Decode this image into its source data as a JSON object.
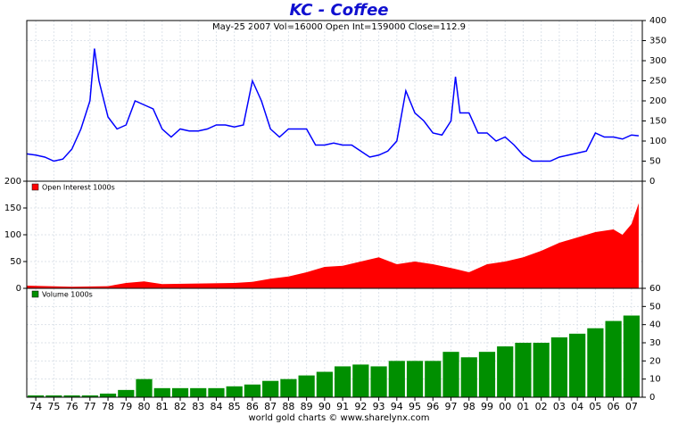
{
  "chart_data": [
    {
      "type": "line",
      "title": "KC  -  Coffee",
      "subtitle": "May-25 2007   Vol=16000   Open Int=159000   Close=112.9",
      "color": "#0000ff",
      "x": [
        1973.5,
        1974,
        1974.5,
        1975,
        1975.5,
        1976,
        1976.5,
        1977,
        1977.25,
        1977.5,
        1978,
        1978.5,
        1979,
        1979.5,
        1980,
        1980.5,
        1981,
        1981.5,
        1982,
        1982.5,
        1983,
        1983.5,
        1984,
        1984.5,
        1985,
        1985.5,
        1986,
        1986.5,
        1987,
        1987.5,
        1988,
        1988.5,
        1989,
        1989.5,
        1990,
        1990.5,
        1991,
        1991.5,
        1992,
        1992.5,
        1993,
        1993.5,
        1994,
        1994.5,
        1995,
        1995.5,
        1996,
        1996.5,
        1997,
        1997.25,
        1997.5,
        1998,
        1998.5,
        1999,
        1999.5,
        2000,
        2000.5,
        2001,
        2001.5,
        2002,
        2002.5,
        2003,
        2003.5,
        2004,
        2004.5,
        2005,
        2005.5,
        2006,
        2006.5,
        2007,
        2007.4
      ],
      "values": [
        68,
        65,
        60,
        50,
        55,
        80,
        130,
        200,
        330,
        250,
        160,
        130,
        140,
        200,
        190,
        180,
        130,
        110,
        130,
        125,
        125,
        130,
        140,
        140,
        135,
        140,
        250,
        200,
        130,
        110,
        130,
        130,
        130,
        90,
        90,
        95,
        90,
        90,
        75,
        60,
        65,
        75,
        100,
        225,
        170,
        150,
        120,
        115,
        150,
        260,
        170,
        170,
        120,
        120,
        100,
        110,
        90,
        65,
        50,
        50,
        50,
        60,
        65,
        70,
        75,
        120,
        110,
        110,
        105,
        115,
        113
      ],
      "ylim": [
        0,
        400
      ],
      "yticks": [
        0,
        50,
        100,
        150,
        200,
        250,
        300,
        350,
        400
      ]
    },
    {
      "type": "area",
      "x": [
        1973.5,
        1976,
        1978,
        1979,
        1980,
        1981,
        1983,
        1985,
        1986,
        1987,
        1988,
        1989,
        1990,
        1991,
        1992,
        1993,
        1994,
        1995,
        1996,
        1997,
        1998,
        1999,
        2000,
        2001,
        2002,
        2003,
        2004,
        2005,
        2006,
        2006.5,
        2007,
        2007.4
      ],
      "series": [
        {
          "name": "Open Interest 1000s",
          "color": "#ff0000",
          "values": [
            5,
            3,
            4,
            10,
            13,
            8,
            9,
            10,
            12,
            18,
            22,
            30,
            40,
            42,
            50,
            58,
            45,
            50,
            45,
            38,
            30,
            45,
            50,
            58,
            70,
            85,
            95,
            105,
            110,
            100,
            120,
            159
          ]
        }
      ],
      "ylim": [
        0,
        200
      ],
      "yticks": [
        0,
        50,
        100,
        150,
        200
      ]
    },
    {
      "type": "bar",
      "x": [
        1974,
        1975,
        1976,
        1977,
        1978,
        1979,
        1980,
        1981,
        1982,
        1983,
        1984,
        1985,
        1986,
        1987,
        1988,
        1989,
        1990,
        1991,
        1992,
        1993,
        1994,
        1995,
        1996,
        1997,
        1998,
        1999,
        2000,
        2001,
        2002,
        2003,
        2004,
        2005,
        2006,
        2007
      ],
      "series": [
        {
          "name": "Volume 1000s",
          "color": "#008f00",
          "values": [
            1,
            1,
            1,
            1,
            2,
            4,
            10,
            5,
            5,
            5,
            5,
            6,
            7,
            9,
            10,
            12,
            14,
            17,
            18,
            17,
            20,
            20,
            20,
            25,
            22,
            25,
            28,
            30,
            30,
            33,
            35,
            38,
            42,
            45
          ]
        }
      ],
      "ylim": [
        0,
        60
      ],
      "yticks": [
        0,
        10,
        20,
        30,
        40,
        50,
        60
      ],
      "xlim": [
        1973.5,
        2007.6
      ],
      "xticks": [
        {
          "value": 1974,
          "label": "74"
        },
        {
          "value": 1975,
          "label": "75"
        },
        {
          "value": 1976,
          "label": "76"
        },
        {
          "value": 1977,
          "label": "77"
        },
        {
          "value": 1978,
          "label": "78"
        },
        {
          "value": 1979,
          "label": "79"
        },
        {
          "value": 1980,
          "label": "80"
        },
        {
          "value": 1981,
          "label": "81"
        },
        {
          "value": 1982,
          "label": "82"
        },
        {
          "value": 1983,
          "label": "83"
        },
        {
          "value": 1984,
          "label": "84"
        },
        {
          "value": 1985,
          "label": "85"
        },
        {
          "value": 1986,
          "label": "86"
        },
        {
          "value": 1987,
          "label": "87"
        },
        {
          "value": 1988,
          "label": "88"
        },
        {
          "value": 1989,
          "label": "89"
        },
        {
          "value": 1990,
          "label": "90"
        },
        {
          "value": 1991,
          "label": "91"
        },
        {
          "value": 1992,
          "label": "92"
        },
        {
          "value": 1993,
          "label": "93"
        },
        {
          "value": 1994,
          "label": "94"
        },
        {
          "value": 1995,
          "label": "95"
        },
        {
          "value": 1996,
          "label": "96"
        },
        {
          "value": 1997,
          "label": "97"
        },
        {
          "value": 1998,
          "label": "98"
        },
        {
          "value": 1999,
          "label": "99"
        },
        {
          "value": 2000,
          "label": "00"
        },
        {
          "value": 2001,
          "label": "01"
        },
        {
          "value": 2002,
          "label": "02"
        },
        {
          "value": 2003,
          "label": "03"
        },
        {
          "value": 2004,
          "label": "04"
        },
        {
          "value": 2005,
          "label": "05"
        },
        {
          "value": 2006,
          "label": "06"
        },
        {
          "value": 2007,
          "label": "07"
        }
      ]
    }
  ],
  "footer": "world gold charts © www.sharelynx.com"
}
